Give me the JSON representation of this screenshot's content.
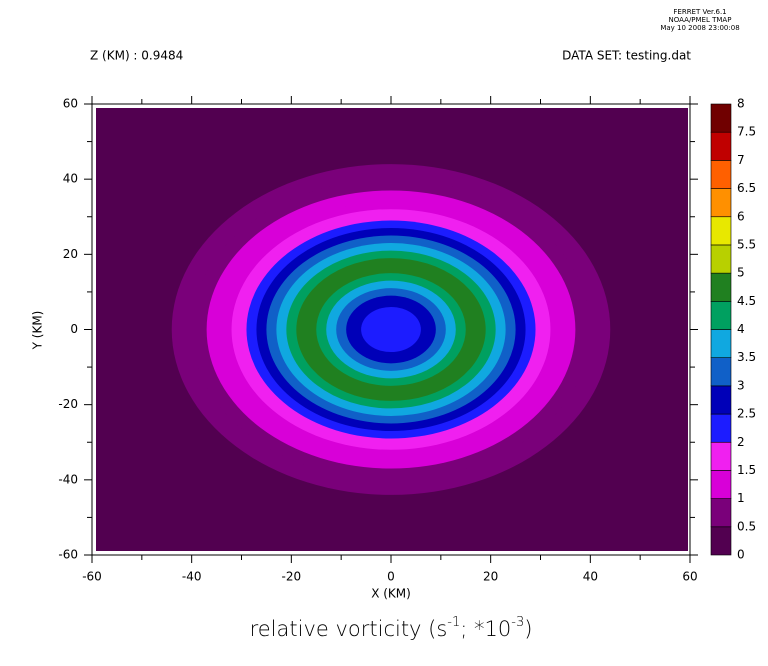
{
  "chart_data": {
    "type": "contour",
    "title_parts": [
      {
        "text": "relative vorticity (s"
      },
      {
        "text": "-1",
        "sup": true
      },
      {
        "text": "; *10"
      },
      {
        "text": "-3",
        "sup": true
      },
      {
        "text": ")"
      }
    ],
    "header": [
      "FERRET  Ver.6.1",
      "NOAA/PMEL TMAP",
      "May 10 2008 23:00:08"
    ],
    "subtitle_left": "Z (KM) : 0.9484",
    "subtitle_right": "DATA SET: testing.dat",
    "x_label": "X (KM)",
    "y_label": "Y (KM)",
    "xlim": [
      -60,
      60
    ],
    "ylim": [
      -60,
      60
    ],
    "xticks": [
      -60,
      -40,
      -20,
      0,
      20,
      40,
      60
    ],
    "yticks": [
      -60,
      -40,
      -20,
      0,
      20,
      40,
      60
    ],
    "xminorticks": [
      -50,
      -30,
      -10,
      10,
      30,
      50
    ],
    "yminorticks": [
      -50,
      -30,
      -10,
      10,
      30,
      50
    ],
    "field": {
      "shape": "radial",
      "center": [
        0,
        0
      ],
      "radius": [
        85,
        44,
        40,
        37,
        34,
        32,
        30,
        29,
        27,
        25,
        23,
        21,
        19,
        15,
        13,
        11,
        9,
        6
      ],
      "values": [
        0,
        0.6,
        0.8,
        1.1,
        1.4,
        1.7,
        1.9,
        2.2,
        2.7,
        3.2,
        3.7,
        4.2,
        4.7,
        4.2,
        3.7,
        3.2,
        2.7,
        2.2
      ]
    },
    "colorbar": {
      "levels": [
        0,
        0.5,
        1,
        1.5,
        2,
        2.5,
        3,
        3.5,
        4,
        4.5,
        5,
        5.5,
        6,
        6.5,
        7,
        7.5,
        8
      ],
      "colors": [
        "#520050",
        "#7a007a",
        "#a800a8",
        "#d800d8",
        "#f020f0",
        "#9a20ff",
        "#1c1cff",
        "#0000b8",
        "#0a2890",
        "#1060c8",
        "#10a8e0",
        "#00d8d8",
        "#00a060",
        "#208020",
        "#60a800",
        "#b8d000",
        "#e8e800",
        "#ffc000",
        "#ff9000",
        "#ff6000",
        "#ff1000",
        "#c00000",
        "#700000"
      ]
    }
  }
}
